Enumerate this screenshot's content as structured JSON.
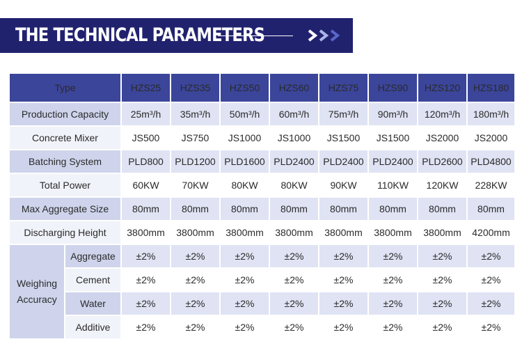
{
  "banner": {
    "title": "THE TECHNICAL PARAMETERS",
    "accent_color": "#21226e",
    "chevron_color": "#5a67c8"
  },
  "table": {
    "corner_label": "Type",
    "models": [
      "HZS25",
      "HZS35",
      "HZS50",
      "HZS60",
      "HZS75",
      "HZS90",
      "HZS120",
      "HZS180"
    ],
    "rows": [
      {
        "label": "Production Capacity",
        "values": [
          "25m³/h",
          "35m³/h",
          "50m³/h",
          "60m³/h",
          "75m³/h",
          "90m³/h",
          "120m³/h",
          "180m³/h"
        ]
      },
      {
        "label": "Concrete Mixer",
        "values": [
          "JS500",
          "JS750",
          "JS1000",
          "JS1000",
          "JS1500",
          "JS1500",
          "JS2000",
          "JS2000"
        ]
      },
      {
        "label": "Batching System",
        "values": [
          "PLD800",
          "PLD1200",
          "PLD1600",
          "PLD2400",
          "PLD2400",
          "PLD2400",
          "PLD2600",
          "PLD4800"
        ]
      },
      {
        "label": "Total Power",
        "values": [
          "60KW",
          "70KW",
          "80KW",
          "80KW",
          "90KW",
          "110KW",
          "120KW",
          "228KW"
        ]
      },
      {
        "label": "Max Aggregate Size",
        "values": [
          "80mm",
          "80mm",
          "80mm",
          "80mm",
          "80mm",
          "80mm",
          "80mm",
          "80mm"
        ]
      },
      {
        "label": "Discharging Height",
        "values": [
          "3800mm",
          "3800mm",
          "3800mm",
          "3800mm",
          "3800mm",
          "3800mm",
          "3800mm",
          "4200mm"
        ]
      }
    ],
    "accuracy_group": {
      "label_line1": "Weighing",
      "label_line2": "Accuracy",
      "rows": [
        {
          "label": "Aggregate",
          "values": [
            "±2%",
            "±2%",
            "±2%",
            "±2%",
            "±2%",
            "±2%",
            "±2%",
            "±2%"
          ]
        },
        {
          "label": "Cement",
          "values": [
            "±2%",
            "±2%",
            "±2%",
            "±2%",
            "±2%",
            "±2%",
            "±2%",
            "±2%"
          ]
        },
        {
          "label": "Water",
          "values": [
            "±2%",
            "±2%",
            "±2%",
            "±2%",
            "±2%",
            "±2%",
            "±2%",
            "±2%"
          ]
        },
        {
          "label": "Additive",
          "values": [
            "±2%",
            "±2%",
            "±2%",
            "±2%",
            "±2%",
            "±2%",
            "±2%",
            "±2%"
          ]
        }
      ]
    }
  }
}
